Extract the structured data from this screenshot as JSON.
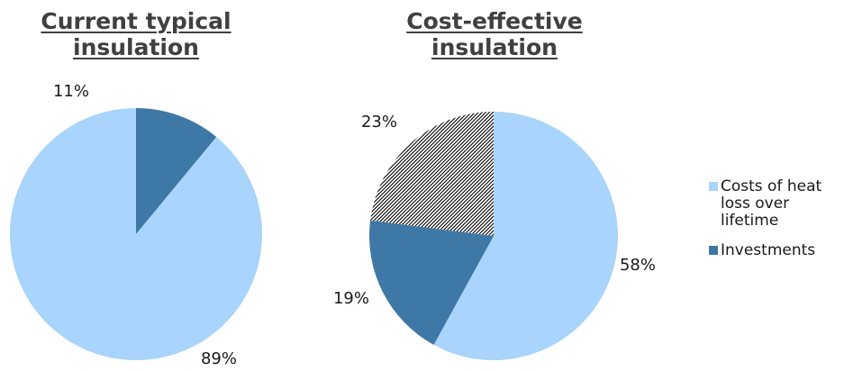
{
  "colors": {
    "heat_loss": "#a9d4fb",
    "investments": "#3d78a6",
    "pattern_line": "#000000",
    "pattern_bg": "#ffffff"
  },
  "legend": {
    "placement": "right",
    "items": [
      {
        "label": "Costs of heat loss over lifetime",
        "color_key": "heat_loss"
      },
      {
        "label": "Investments",
        "color_key": "investments"
      }
    ]
  },
  "chart_data": [
    {
      "type": "pie",
      "title": "Current typical insulation",
      "slices": [
        {
          "name": "Investments",
          "value": 11,
          "label": "11%",
          "fill": "investments"
        },
        {
          "name": "Costs of heat loss over lifetime",
          "value": 89,
          "label": "89%",
          "fill": "heat_loss"
        }
      ]
    },
    {
      "type": "pie",
      "title": "Cost-effective insulation",
      "slices": [
        {
          "name": "Costs of heat loss over lifetime",
          "value": 58,
          "label": "58%",
          "fill": "heat_loss"
        },
        {
          "name": "Investments",
          "value": 19,
          "label": "19%",
          "fill": "investments"
        },
        {
          "name": "",
          "value": 23,
          "label": "23%",
          "fill": "hatched"
        }
      ]
    }
  ]
}
